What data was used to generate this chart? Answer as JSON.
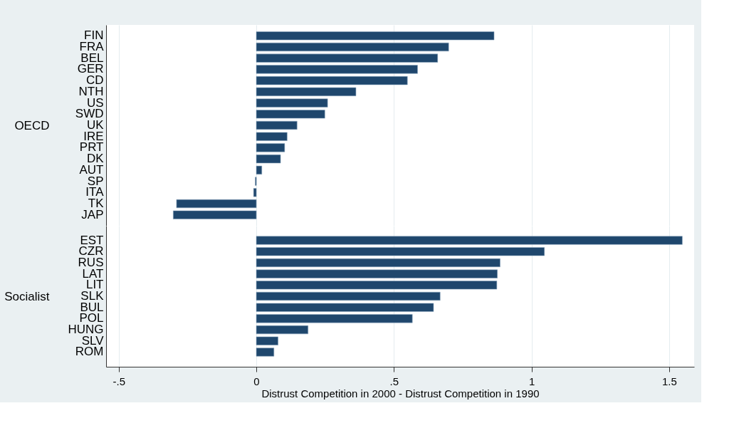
{
  "chart_data": [
    {
      "type": "bar",
      "orientation": "horizontal",
      "ylabel": "OECD",
      "categories": [
        "FIN",
        "FRA",
        "BEL",
        "GER",
        "CD",
        "NTH",
        "US",
        "SWD",
        "UK",
        "IRE",
        "PRT",
        "DK",
        "AUT",
        "SP",
        "ITA",
        "TK",
        "JAP"
      ],
      "values": [
        0.864,
        0.699,
        0.659,
        0.586,
        0.549,
        0.362,
        0.259,
        0.249,
        0.148,
        0.112,
        0.103,
        0.088,
        0.02,
        -0.004,
        -0.01,
        -0.29,
        -0.302
      ],
      "color": "#1f476d",
      "xlim": [
        -0.546,
        1.591
      ],
      "xticks": [
        -0.5,
        0,
        0.5,
        1,
        1.5
      ],
      "grid": "x",
      "tick_labels": "y"
    },
    {
      "type": "bar",
      "orientation": "horizontal",
      "ylabel": "Socialist",
      "xlabel": "Distrust Competition in 2000 - Distrust Competition in 1990",
      "categories": [
        "EST",
        "CZR",
        "RUS",
        "LAT",
        "LIT",
        "SLK",
        "BUL",
        "POL",
        "HUNG",
        "SLV",
        "ROM"
      ],
      "values": [
        1.548,
        1.047,
        0.886,
        0.876,
        0.874,
        0.668,
        0.644,
        0.567,
        0.188,
        0.079,
        0.064
      ],
      "color": "#1f476d",
      "xlim": [
        -0.546,
        1.591
      ],
      "xticks": [
        {
          "value": -0.5,
          "label": "-.5"
        },
        0,
        {
          "value": 0.5,
          "label": ".5"
        },
        1,
        1.5
      ],
      "grid": "x"
    }
  ]
}
